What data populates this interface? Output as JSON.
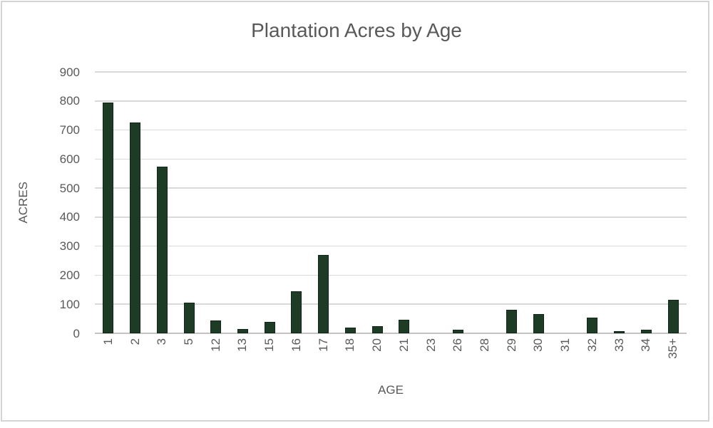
{
  "chart_data": {
    "type": "bar",
    "title": "Plantation Acres by Age",
    "xlabel": "AGE",
    "ylabel": "ACRES",
    "categories": [
      "1",
      "2",
      "3",
      "5",
      "12",
      "13",
      "15",
      "16",
      "17",
      "18",
      "20",
      "21",
      "23",
      "26",
      "28",
      "29",
      "30",
      "31",
      "32",
      "33",
      "34",
      "35+"
    ],
    "values": [
      795,
      725,
      575,
      105,
      45,
      15,
      40,
      145,
      270,
      20,
      25,
      47,
      0,
      13,
      0,
      80,
      65,
      0,
      55,
      7,
      12,
      115
    ],
    "ylim": [
      0,
      900
    ],
    "ytick_step": 100,
    "ytick_labels": [
      "0",
      "100",
      "200",
      "300",
      "400",
      "500",
      "600",
      "700",
      "800",
      "900"
    ],
    "grid": true,
    "legend": false,
    "colors": {
      "bar_fill": "#1d3b25",
      "bar_border": "#102717",
      "gridline": "#d9d9d9",
      "axis_line": "#c3c3c3",
      "text": "#595959",
      "frame_border": "#d4d4d4",
      "background": "#ffffff"
    }
  }
}
